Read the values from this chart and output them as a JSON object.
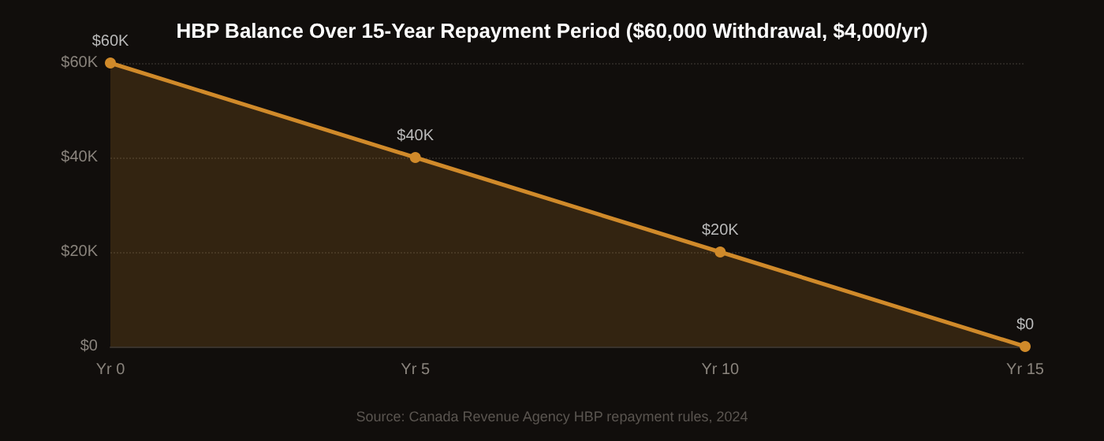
{
  "chart_data": {
    "type": "area",
    "title": "HBP Balance Over 15-Year Repayment Period ($60,000 Withdrawal, $4,000/yr)",
    "categories": [
      "Yr 0",
      "Yr 5",
      "Yr 10",
      "Yr 15"
    ],
    "series": [
      {
        "color": "#d08a2a",
        "values": [
          60000,
          40000,
          20000,
          0
        ],
        "value_labels": [
          "$60K",
          "$40K",
          "$20K",
          "$0"
        ]
      }
    ],
    "ylim": [
      0,
      60000
    ],
    "yticks": [
      {
        "value": 0,
        "label": "$0"
      },
      {
        "value": 20000,
        "label": "$20K"
      },
      {
        "value": 40000,
        "label": "$40K"
      },
      {
        "value": 60000,
        "label": "$60K"
      }
    ],
    "grid": "y",
    "marker": "circle",
    "line_style": "solid",
    "annotations": [
      "Source: Canada Revenue Agency HBP repayment rules, 2024"
    ]
  }
}
